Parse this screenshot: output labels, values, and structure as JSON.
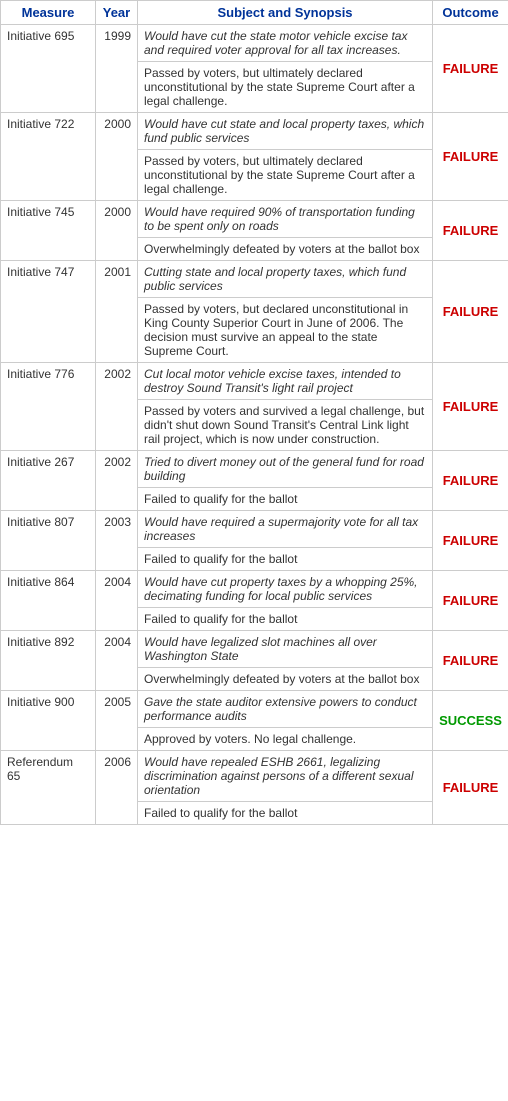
{
  "headers": {
    "measure": "Measure",
    "year": "Year",
    "synopsis": "Subject and Synopsis",
    "outcome": "Outcome"
  },
  "rows": [
    {
      "measure": "Initiative 695",
      "year": "1999",
      "synopsis": "Would have cut the state motor vehicle excise tax and required voter approval for all tax increases.",
      "result": "Passed by voters, but ultimately declared unconstitutional by the state Supreme Court after a legal challenge.",
      "outcome": "FAILURE"
    },
    {
      "measure": "Initiative 722",
      "year": "2000",
      "synopsis": "Would have cut state and local property taxes, which fund public services",
      "result": "Passed by voters, but ultimately declared unconstitutional by the state Supreme Court after a legal challenge.",
      "outcome": "FAILURE"
    },
    {
      "measure": "Initiative 745",
      "year": "2000",
      "synopsis": "Would have required 90% of transportation funding to be spent only on roads",
      "result": "Overwhelmingly defeated by voters at the ballot box",
      "outcome": "FAILURE"
    },
    {
      "measure": "Initiative 747",
      "year": "2001",
      "synopsis": "Cutting state and local property taxes, which fund public services",
      "result": "Passed by voters, but declared unconstitutional in King County Superior Court in June of 2006. The decision must survive an appeal to the state Supreme Court.",
      "outcome": "FAILURE"
    },
    {
      "measure": "Initiative 776",
      "year": "2002",
      "synopsis": "Cut local motor vehicle excise taxes, intended to destroy Sound Transit's light rail project",
      "result": "Passed by voters and survived a legal challenge, but didn't shut down Sound Transit's Central Link light rail project, which is now under construction.",
      "outcome": "FAILURE"
    },
    {
      "measure": "Initiative 267",
      "year": "2002",
      "synopsis": "Tried to divert money out of the general fund for road building",
      "result": "Failed to qualify for the ballot",
      "outcome": "FAILURE"
    },
    {
      "measure": "Initiative 807",
      "year": "2003",
      "synopsis": "Would have required a supermajority vote for all tax increases",
      "result": "Failed to qualify for the ballot",
      "outcome": "FAILURE"
    },
    {
      "measure": "Initiative 864",
      "year": "2004",
      "synopsis": "Would have cut property taxes by a whopping 25%, decimating funding for local public services",
      "result": "Failed to qualify for the ballot",
      "outcome": "FAILURE"
    },
    {
      "measure": "Initiative 892",
      "year": "2004",
      "synopsis": "Would have legalized slot machines all over Washington State",
      "result": "Overwhelmingly defeated by voters at the ballot box",
      "outcome": "FAILURE"
    },
    {
      "measure": "Initiative 900",
      "year": "2005",
      "synopsis": "Gave the state auditor extensive powers to conduct performance audits",
      "result": "Approved by voters. No legal challenge.",
      "outcome": "SUCCESS"
    },
    {
      "measure": "Referendum 65",
      "year": "2006",
      "synopsis": "Would have repealed ESHB 2661, legalizing discrimination against persons of a different sexual orientation",
      "result": "Failed to qualify for the ballot",
      "outcome": "FAILURE"
    }
  ]
}
